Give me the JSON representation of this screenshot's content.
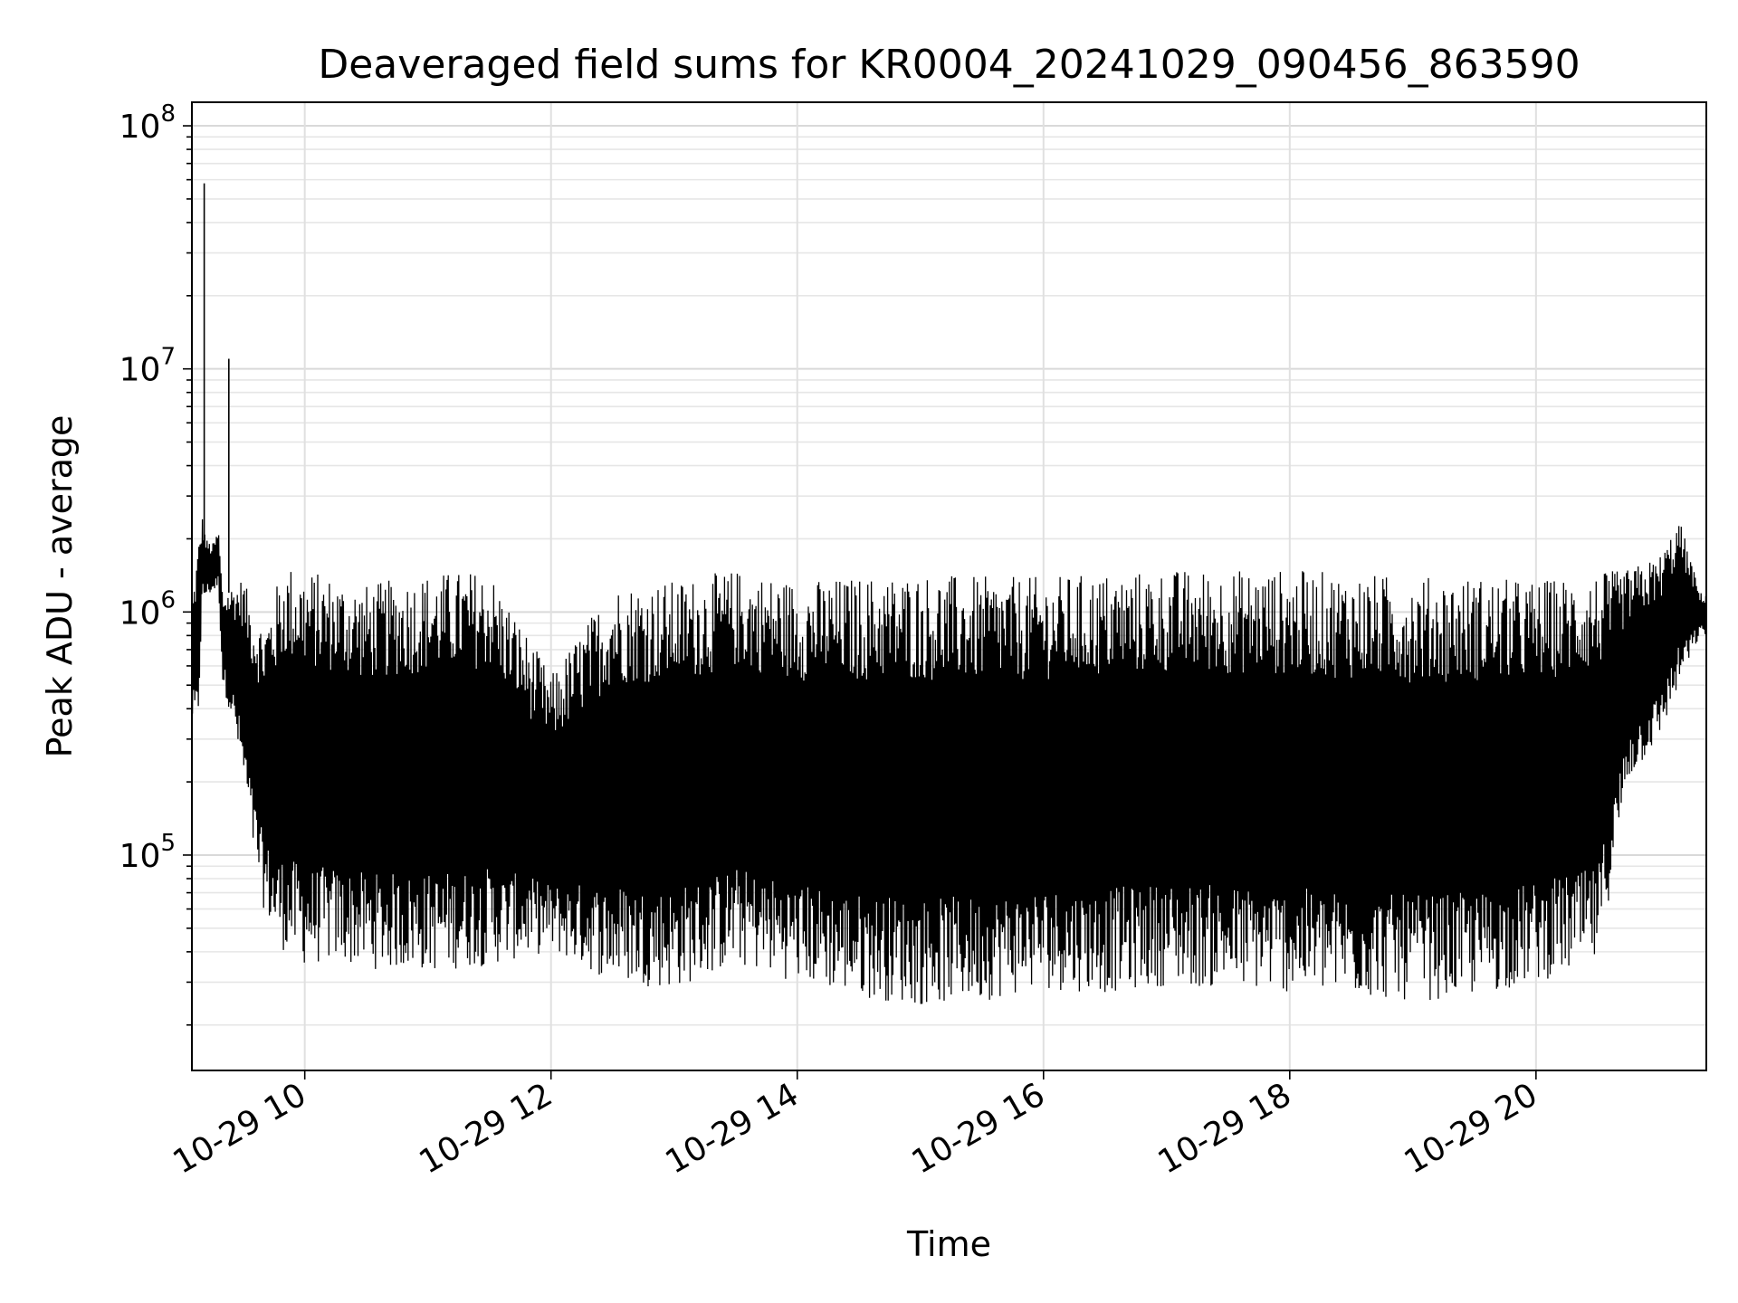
{
  "chart_data": {
    "type": "line",
    "title": "Deaveraged field sums for KR0004_20241029_090456_863590",
    "xlabel": "Time",
    "ylabel": "Peak ADU - average",
    "yscale": "log",
    "ylim": [
      13000,
      125000000
    ],
    "xlim": [
      "2024-10-29 09:05",
      "2024-10-29 21:23"
    ],
    "x_ticks": [
      "10-29 10",
      "10-29 12",
      "10-29 14",
      "10-29 16",
      "10-29 18",
      "10-29 20"
    ],
    "y_ticks": [
      {
        "base": "10",
        "exp": "5",
        "value": 100000
      },
      {
        "base": "10",
        "exp": "6",
        "value": 1000000
      },
      {
        "base": "10",
        "exp": "7",
        "value": 10000000
      },
      {
        "base": "10",
        "exp": "8",
        "value": 100000000
      }
    ],
    "grid": true,
    "line_color": "#000000",
    "series": [
      {
        "x": [
          "2024-10-29 09:05",
          "2024-10-29 09:08",
          "2024-10-29 09:10",
          "2024-10-29 09:12",
          "2024-10-29 09:15",
          "2024-10-29 09:18",
          "2024-10-29 09:20",
          "2024-10-29 09:25",
          "2024-10-29 09:30",
          "2024-10-29 09:35",
          "2024-10-29 09:40",
          "2024-10-29 09:45",
          "2024-10-29 09:50",
          "2024-10-29 10:00",
          "2024-10-29 10:15",
          "2024-10-29 10:30",
          "2024-10-29 11:00",
          "2024-10-29 11:30",
          "2024-10-29 12:00",
          "2024-10-29 12:30",
          "2024-10-29 13:00",
          "2024-10-29 13:30",
          "2024-10-29 14:00",
          "2024-10-29 14:30",
          "2024-10-29 15:00",
          "2024-10-29 15:30",
          "2024-10-29 16:00",
          "2024-10-29 16:30",
          "2024-10-29 17:00",
          "2024-10-29 17:30",
          "2024-10-29 18:00",
          "2024-10-29 18:30",
          "2024-10-29 19:00",
          "2024-10-29 19:30",
          "2024-10-29 20:00",
          "2024-10-29 20:30",
          "2024-10-29 20:45",
          "2024-10-29 21:00",
          "2024-10-29 21:10",
          "2024-10-29 21:20"
        ],
        "low": [
          350000,
          330000,
          1100000,
          1150000,
          1200000,
          1250000,
          500000,
          350000,
          200000,
          100000,
          60000,
          45000,
          40000,
          35000,
          36000,
          34000,
          33000,
          35000,
          40000,
          30000,
          28000,
          35000,
          30000,
          26000,
          24000,
          25000,
          28000,
          27000,
          29000,
          28000,
          27000,
          26000,
          25000,
          26000,
          30000,
          35000,
          200000,
          300000,
          500000,
          800000
        ],
        "high": [
          1100000,
          1900000,
          2500000,
          2000000,
          1900000,
          2200000,
          1200000,
          1300000,
          1400000,
          1000000,
          900000,
          1200000,
          1600000,
          1500000,
          1400000,
          1300000,
          1450000,
          1500000,
          550000,
          1300000,
          1350000,
          1500000,
          1350000,
          1400000,
          1450000,
          1400000,
          1400000,
          1450000,
          1500000,
          1500000,
          1500000,
          1450000,
          1400000,
          1400000,
          1350000,
          1450000,
          1500000,
          1700000,
          2400000,
          1200000
        ],
        "spikes": [
          {
            "x": "2024-10-29 09:11",
            "value": 58000000
          },
          {
            "x": "2024-10-29 09:23",
            "value": 11000000
          }
        ]
      }
    ]
  }
}
